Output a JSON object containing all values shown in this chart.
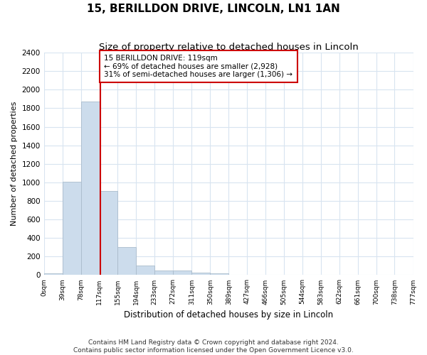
{
  "title": "15, BERILLDON DRIVE, LINCOLN, LN1 1AN",
  "subtitle": "Size of property relative to detached houses in Lincoln",
  "xlabel": "Distribution of detached houses by size in Lincoln",
  "ylabel": "Number of detached properties",
  "bar_edges": [
    0,
    39,
    78,
    117,
    155,
    194,
    233,
    272,
    311,
    350,
    389,
    427,
    466,
    505,
    544,
    583,
    622,
    661,
    700,
    738,
    777
  ],
  "bar_heights": [
    20,
    1005,
    1870,
    905,
    305,
    100,
    50,
    50,
    30,
    20,
    0,
    0,
    0,
    0,
    0,
    0,
    0,
    0,
    0,
    0
  ],
  "bar_color": "#ccdcec",
  "bar_edge_color": "#aabccc",
  "property_size": 119,
  "vline_color": "#cc0000",
  "annotation_text": "15 BERILLDON DRIVE: 119sqm\n← 69% of detached houses are smaller (2,928)\n31% of semi-detached houses are larger (1,306) →",
  "annotation_box_color": "#cc0000",
  "ylim": [
    0,
    2400
  ],
  "yticks": [
    0,
    200,
    400,
    600,
    800,
    1000,
    1200,
    1400,
    1600,
    1800,
    2000,
    2200,
    2400
  ],
  "x_tick_labels": [
    "0sqm",
    "39sqm",
    "78sqm",
    "117sqm",
    "155sqm",
    "194sqm",
    "233sqm",
    "272sqm",
    "311sqm",
    "350sqm",
    "389sqm",
    "427sqm",
    "466sqm",
    "505sqm",
    "544sqm",
    "583sqm",
    "622sqm",
    "661sqm",
    "700sqm",
    "738sqm",
    "777sqm"
  ],
  "footer_line1": "Contains HM Land Registry data © Crown copyright and database right 2024.",
  "footer_line2": "Contains public sector information licensed under the Open Government Licence v3.0.",
  "background_color": "#ffffff",
  "plot_bg_color": "#ffffff",
  "grid_color": "#d8e4f0",
  "title_fontsize": 11,
  "subtitle_fontsize": 9.5,
  "figsize": [
    6.0,
    5.0
  ],
  "dpi": 100
}
